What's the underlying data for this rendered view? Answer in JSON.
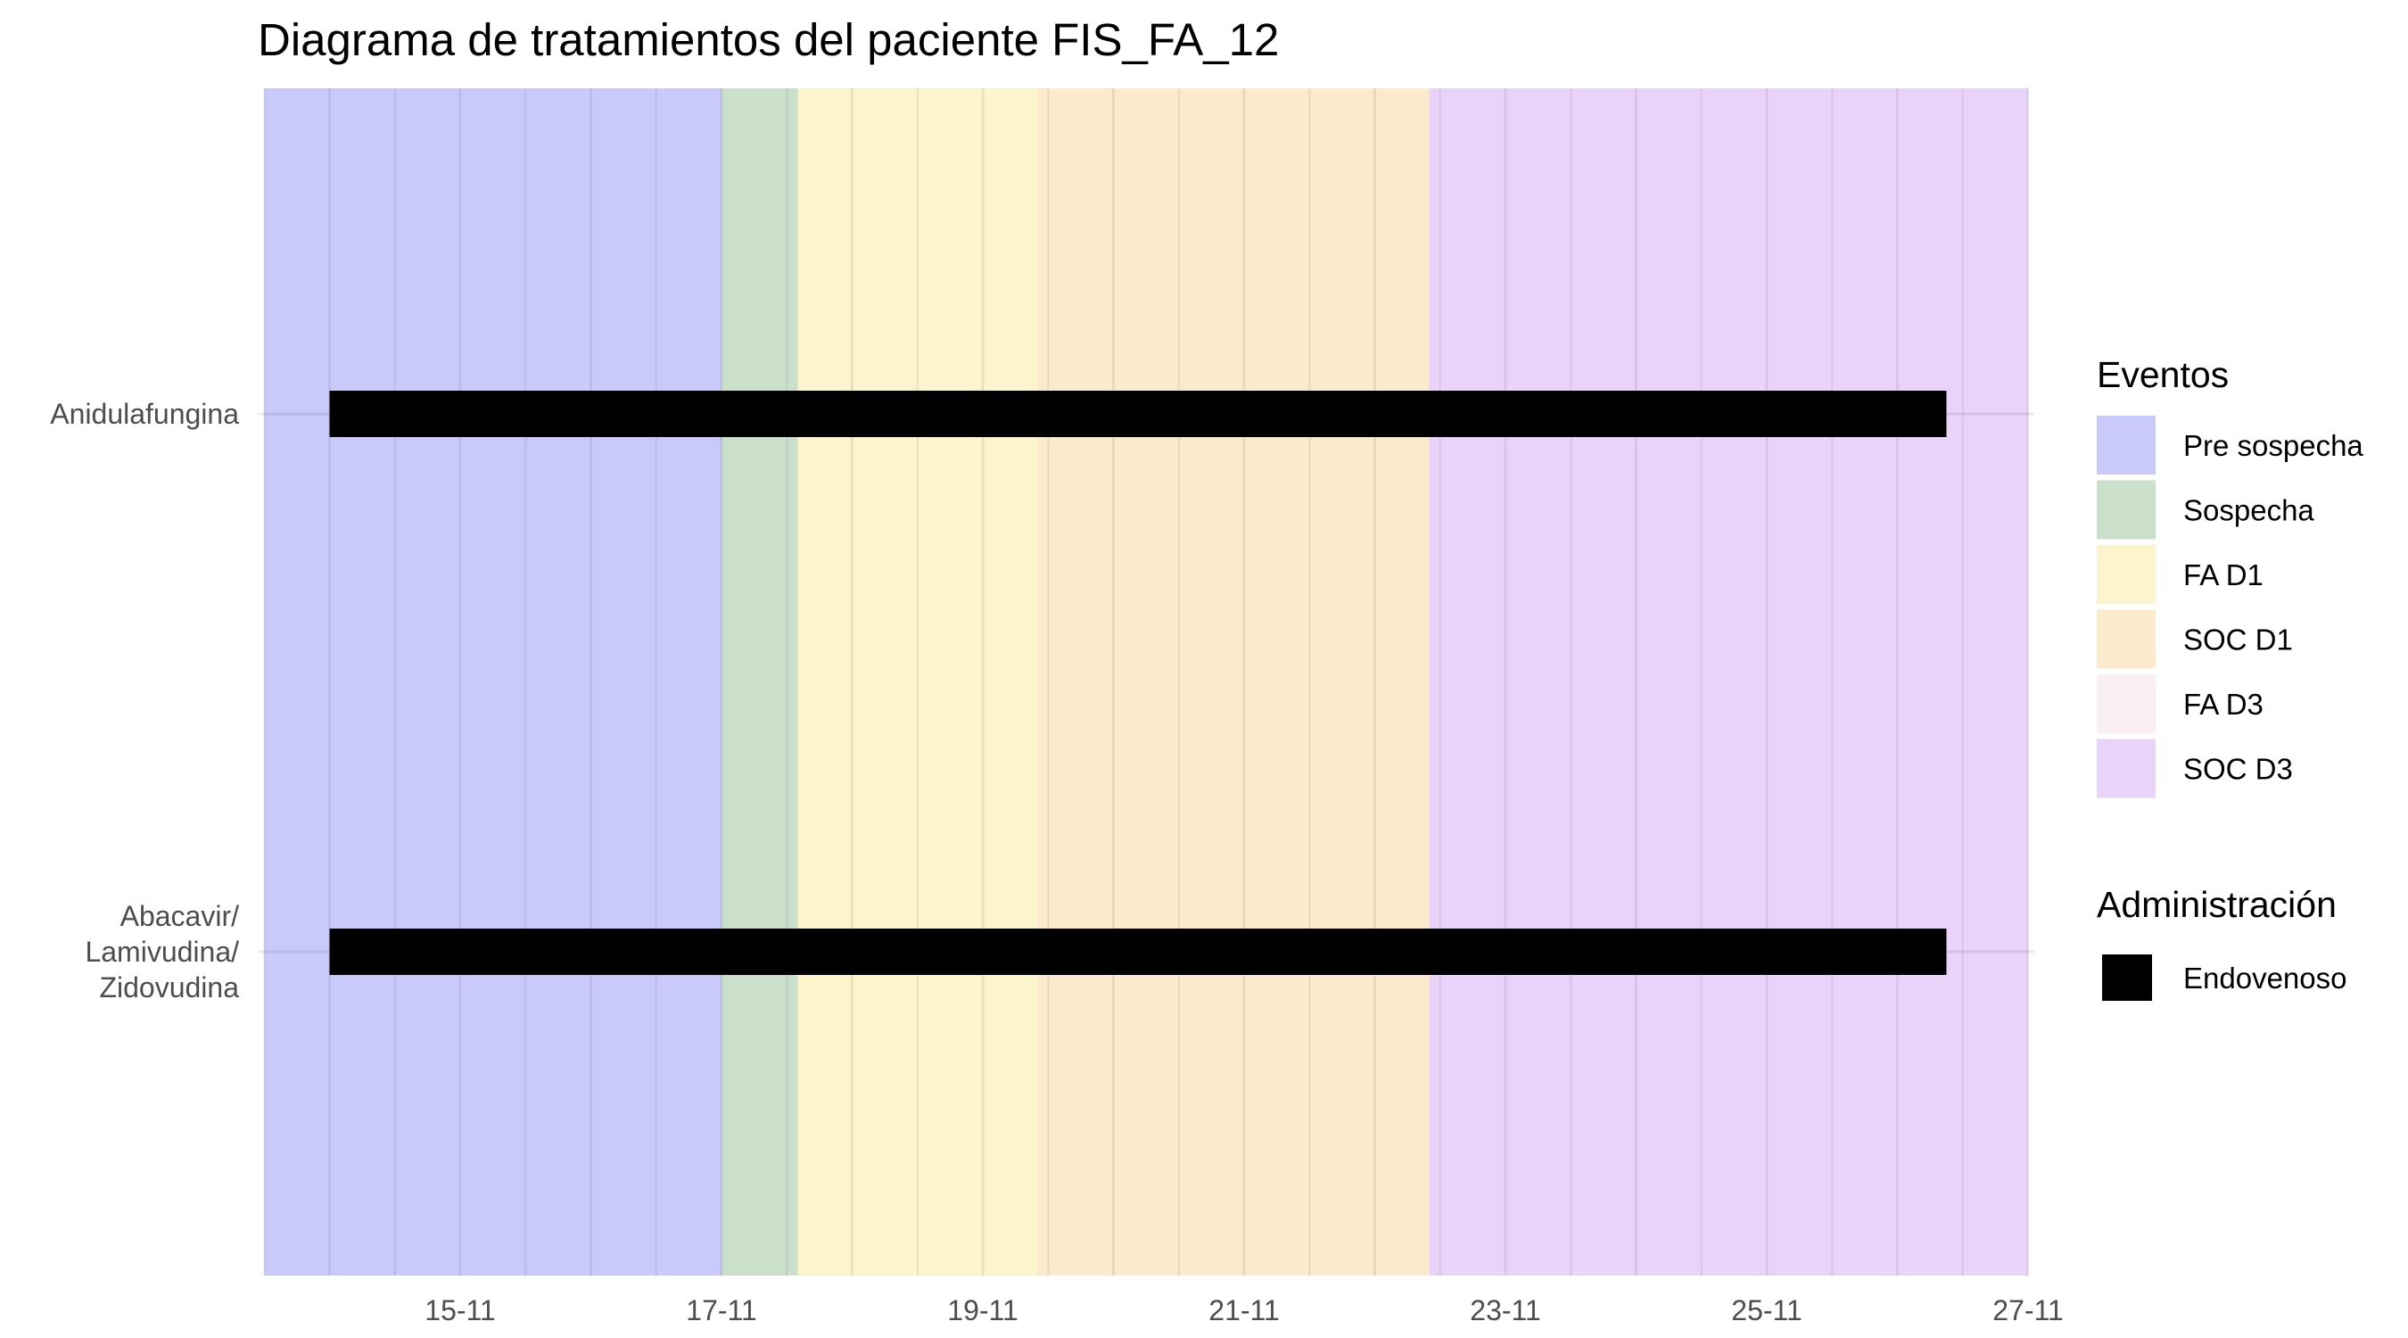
{
  "chart_data": {
    "type": "gantt",
    "title": "Diagrama de tratamientos del paciente FIS_FA_12",
    "xlabel": "",
    "ylabel": "",
    "x_axis": {
      "type": "date",
      "tick_labels": [
        "15-11",
        "17-11",
        "19-11",
        "21-11",
        "23-11",
        "25-11",
        "27-11"
      ]
    },
    "y_categories": [
      {
        "id": "anidula",
        "lines": [
          "Anidulafungina"
        ]
      },
      {
        "id": "abacavir",
        "lines": [
          "Abacavir/",
          "Lamivudina/",
          "Zidovudina"
        ]
      }
    ],
    "events": [
      {
        "label": "Pre sospecha",
        "start": "13-11 12:00",
        "end": "17-11 00:00",
        "color": "#c9cafa"
      },
      {
        "label": "Sospecha",
        "start": "17-11 00:00",
        "end": "17-11 14:00",
        "color": "#cae0cb"
      },
      {
        "label": "FA D1",
        "start": "17-11 14:00",
        "end": "19-11 10:00",
        "color": "#fcf4cc"
      },
      {
        "label": "SOC D1",
        "start": "19-11 10:00",
        "end": "22-11 10:00",
        "color": "#fbeacb"
      },
      {
        "label": "FA D3",
        "start": "",
        "end": "",
        "color": "#faf0f2"
      },
      {
        "label": "SOC D3",
        "start": "22-11 10:00",
        "end": "27-11 00:00",
        "color": "#e9d3f9"
      }
    ],
    "treatments": [
      {
        "drug": "anidula",
        "start": "14-11 00:00",
        "end": "26-11 09:00",
        "administration": "Endovenoso"
      },
      {
        "drug": "abacavir",
        "start": "14-11 00:00",
        "end": "26-11 09:00",
        "administration": "Endovenoso"
      }
    ],
    "legend": {
      "placement": "right",
      "events_title": "Eventos",
      "admin_title": "Administración",
      "admin_items": [
        {
          "label": "Endovenoso",
          "color": "#000000"
        }
      ]
    },
    "grid": true
  }
}
